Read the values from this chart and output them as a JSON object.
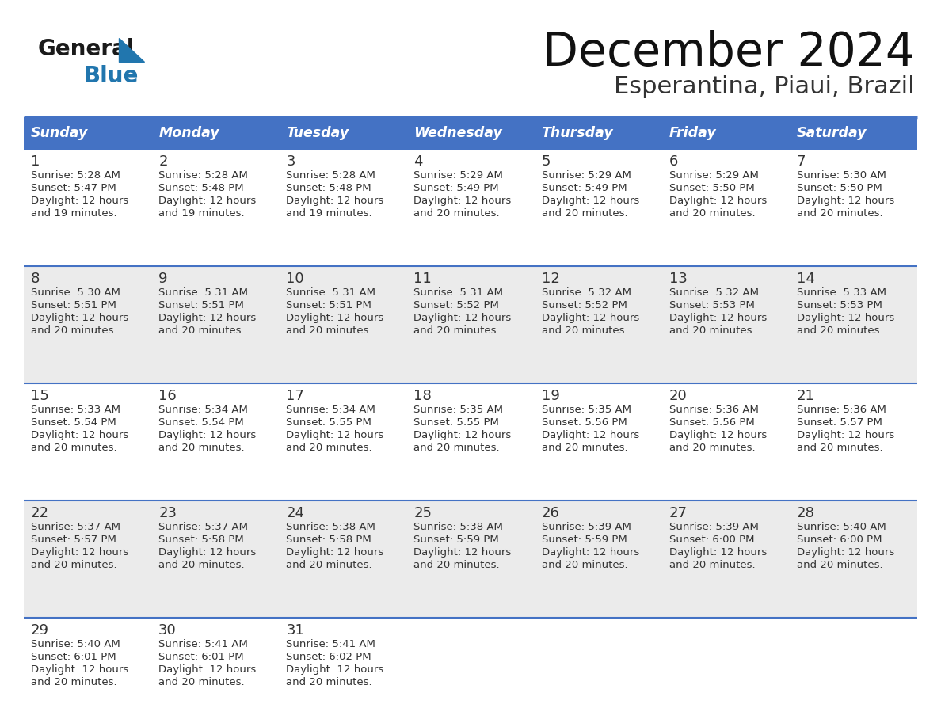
{
  "title": "December 2024",
  "subtitle": "Esperantina, Piaui, Brazil",
  "days_of_week": [
    "Sunday",
    "Monday",
    "Tuesday",
    "Wednesday",
    "Thursday",
    "Friday",
    "Saturday"
  ],
  "header_bg": "#4472C4",
  "header_text": "#FFFFFF",
  "cell_bg_odd": "#FFFFFF",
  "cell_bg_even": "#EBEBEB",
  "border_color": "#4472C4",
  "text_color": "#333333",
  "title_color": "#1a1a1a",
  "logo_general_color": "#1a1a1a",
  "logo_blue_color": "#2176AE",
  "calendar_data": [
    [
      {
        "day": 1,
        "sunrise": "5:28 AM",
        "sunset": "5:47 PM",
        "daylight": "12 hours and 19 minutes."
      },
      {
        "day": 2,
        "sunrise": "5:28 AM",
        "sunset": "5:48 PM",
        "daylight": "12 hours and 19 minutes."
      },
      {
        "day": 3,
        "sunrise": "5:28 AM",
        "sunset": "5:48 PM",
        "daylight": "12 hours and 19 minutes."
      },
      {
        "day": 4,
        "sunrise": "5:29 AM",
        "sunset": "5:49 PM",
        "daylight": "12 hours and 20 minutes."
      },
      {
        "day": 5,
        "sunrise": "5:29 AM",
        "sunset": "5:49 PM",
        "daylight": "12 hours and 20 minutes."
      },
      {
        "day": 6,
        "sunrise": "5:29 AM",
        "sunset": "5:50 PM",
        "daylight": "12 hours and 20 minutes."
      },
      {
        "day": 7,
        "sunrise": "5:30 AM",
        "sunset": "5:50 PM",
        "daylight": "12 hours and 20 minutes."
      }
    ],
    [
      {
        "day": 8,
        "sunrise": "5:30 AM",
        "sunset": "5:51 PM",
        "daylight": "12 hours and 20 minutes."
      },
      {
        "day": 9,
        "sunrise": "5:31 AM",
        "sunset": "5:51 PM",
        "daylight": "12 hours and 20 minutes."
      },
      {
        "day": 10,
        "sunrise": "5:31 AM",
        "sunset": "5:51 PM",
        "daylight": "12 hours and 20 minutes."
      },
      {
        "day": 11,
        "sunrise": "5:31 AM",
        "sunset": "5:52 PM",
        "daylight": "12 hours and 20 minutes."
      },
      {
        "day": 12,
        "sunrise": "5:32 AM",
        "sunset": "5:52 PM",
        "daylight": "12 hours and 20 minutes."
      },
      {
        "day": 13,
        "sunrise": "5:32 AM",
        "sunset": "5:53 PM",
        "daylight": "12 hours and 20 minutes."
      },
      {
        "day": 14,
        "sunrise": "5:33 AM",
        "sunset": "5:53 PM",
        "daylight": "12 hours and 20 minutes."
      }
    ],
    [
      {
        "day": 15,
        "sunrise": "5:33 AM",
        "sunset": "5:54 PM",
        "daylight": "12 hours and 20 minutes."
      },
      {
        "day": 16,
        "sunrise": "5:34 AM",
        "sunset": "5:54 PM",
        "daylight": "12 hours and 20 minutes."
      },
      {
        "day": 17,
        "sunrise": "5:34 AM",
        "sunset": "5:55 PM",
        "daylight": "12 hours and 20 minutes."
      },
      {
        "day": 18,
        "sunrise": "5:35 AM",
        "sunset": "5:55 PM",
        "daylight": "12 hours and 20 minutes."
      },
      {
        "day": 19,
        "sunrise": "5:35 AM",
        "sunset": "5:56 PM",
        "daylight": "12 hours and 20 minutes."
      },
      {
        "day": 20,
        "sunrise": "5:36 AM",
        "sunset": "5:56 PM",
        "daylight": "12 hours and 20 minutes."
      },
      {
        "day": 21,
        "sunrise": "5:36 AM",
        "sunset": "5:57 PM",
        "daylight": "12 hours and 20 minutes."
      }
    ],
    [
      {
        "day": 22,
        "sunrise": "5:37 AM",
        "sunset": "5:57 PM",
        "daylight": "12 hours and 20 minutes."
      },
      {
        "day": 23,
        "sunrise": "5:37 AM",
        "sunset": "5:58 PM",
        "daylight": "12 hours and 20 minutes."
      },
      {
        "day": 24,
        "sunrise": "5:38 AM",
        "sunset": "5:58 PM",
        "daylight": "12 hours and 20 minutes."
      },
      {
        "day": 25,
        "sunrise": "5:38 AM",
        "sunset": "5:59 PM",
        "daylight": "12 hours and 20 minutes."
      },
      {
        "day": 26,
        "sunrise": "5:39 AM",
        "sunset": "5:59 PM",
        "daylight": "12 hours and 20 minutes."
      },
      {
        "day": 27,
        "sunrise": "5:39 AM",
        "sunset": "6:00 PM",
        "daylight": "12 hours and 20 minutes."
      },
      {
        "day": 28,
        "sunrise": "5:40 AM",
        "sunset": "6:00 PM",
        "daylight": "12 hours and 20 minutes."
      }
    ],
    [
      {
        "day": 29,
        "sunrise": "5:40 AM",
        "sunset": "6:01 PM",
        "daylight": "12 hours and 20 minutes."
      },
      {
        "day": 30,
        "sunrise": "5:41 AM",
        "sunset": "6:01 PM",
        "daylight": "12 hours and 20 minutes."
      },
      {
        "day": 31,
        "sunrise": "5:41 AM",
        "sunset": "6:02 PM",
        "daylight": "12 hours and 20 minutes."
      },
      null,
      null,
      null,
      null
    ]
  ],
  "fig_width": 11.88,
  "fig_height": 9.18
}
